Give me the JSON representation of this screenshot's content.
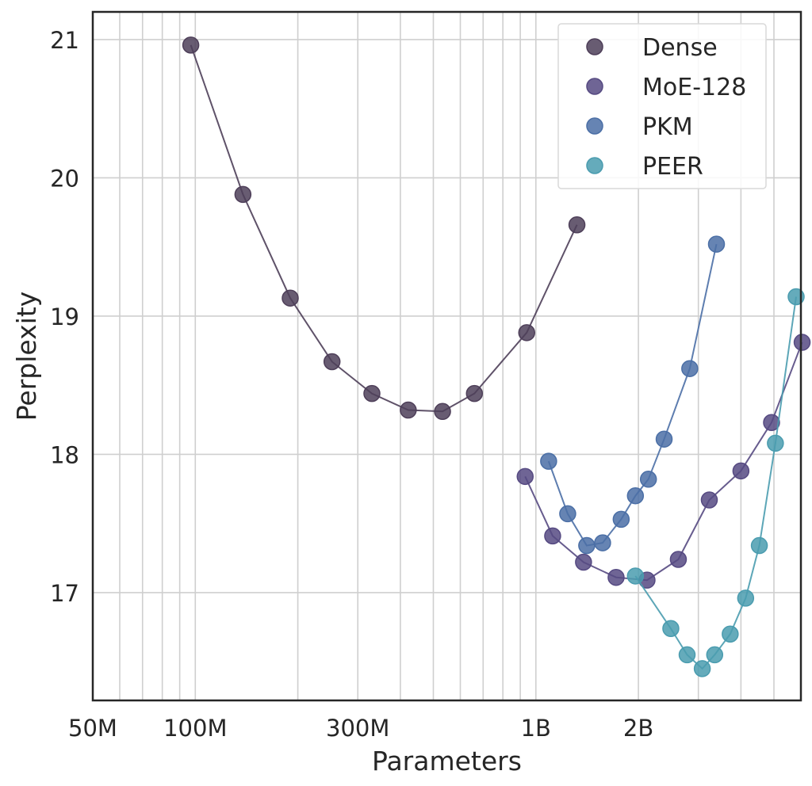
{
  "chart_data": {
    "type": "scatter",
    "title": "",
    "xlabel": "Parameters",
    "ylabel": "Perplexity",
    "xscale": "log",
    "xlim": [
      50000000,
      6000000000
    ],
    "ylim": [
      16.22,
      21.2
    ],
    "x_ticks": [
      {
        "value": 50000000,
        "label": "50M"
      },
      {
        "value": 100000000,
        "label": "100M"
      },
      {
        "value": 300000000,
        "label": "300M"
      },
      {
        "value": 1000000000,
        "label": "1B"
      },
      {
        "value": 2000000000,
        "label": "2B"
      }
    ],
    "y_ticks": [
      {
        "value": 17,
        "label": "17"
      },
      {
        "value": 18,
        "label": "18"
      },
      {
        "value": 19,
        "label": "19"
      },
      {
        "value": 20,
        "label": "20"
      },
      {
        "value": 21,
        "label": "21"
      }
    ],
    "grid": true,
    "legend_position": "top-right",
    "series": [
      {
        "name": "Dense",
        "color": "#4e3f59",
        "x": [
          97000000,
          138000000,
          190000000,
          252000000,
          330000000,
          422000000,
          532000000,
          660000000,
          940000000,
          1320000000
        ],
        "y": [
          20.96,
          19.88,
          19.13,
          18.67,
          18.44,
          18.32,
          18.31,
          18.44,
          18.88,
          19.66
        ]
      },
      {
        "name": "MoE-128",
        "color": "#564a82",
        "x": [
          930000000,
          1120000000,
          1380000000,
          1720000000,
          2120000000,
          2620000000,
          3230000000,
          4000000000,
          4920000000,
          6050000000
        ],
        "y": [
          17.84,
          17.41,
          17.22,
          17.11,
          17.09,
          17.24,
          17.67,
          17.88,
          18.23,
          18.81
        ]
      },
      {
        "name": "PKM",
        "color": "#4b6fa6",
        "x": [
          1090000000,
          1240000000,
          1410000000,
          1570000000,
          1780000000,
          1960000000,
          2140000000,
          2380000000,
          2830000000,
          3390000000
        ],
        "y": [
          17.95,
          17.57,
          17.34,
          17.36,
          17.53,
          17.7,
          17.82,
          18.11,
          18.62,
          19.52
        ]
      },
      {
        "name": "PEER",
        "color": "#4a9caf",
        "x": [
          1960000000,
          2490000000,
          2780000000,
          3080000000,
          3350000000,
          3720000000,
          4130000000,
          4530000000,
          5050000000,
          5810000000
        ],
        "y": [
          17.12,
          16.74,
          16.55,
          16.45,
          16.55,
          16.7,
          16.96,
          17.34,
          18.08,
          19.14
        ]
      }
    ]
  }
}
